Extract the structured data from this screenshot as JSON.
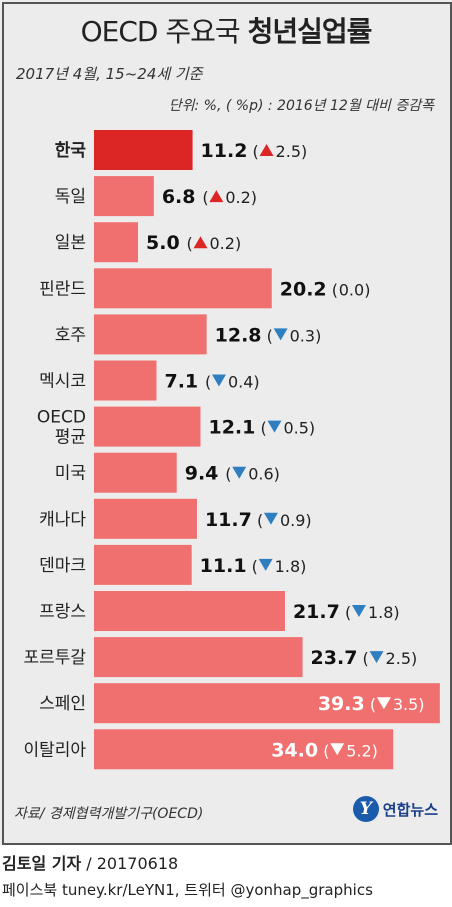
{
  "title_light": "OECD 주요국 ",
  "title_bold": "청년실업률",
  "subtitle": "2017년 4월, 15~24세 기준",
  "unit_note": "단위: %, ( %p) : 2016년 12월 대비 증감폭",
  "source": "자료/ 경제협력개발기구(OECD)",
  "logo_text": "연합뉴스",
  "logo_mark": "Y",
  "reporter": "김토일 기자",
  "date": " / 20170618",
  "social": "페이스북 tuney.kr/LeYN1, 트위터 @yonhap_graphics",
  "colors": {
    "bar": "#f07070",
    "highlight": "#dc2626",
    "up": "#dc2626",
    "down": "#2f7fc0",
    "panel": "#ececec"
  },
  "chart_data": {
    "type": "bar",
    "orientation": "horizontal",
    "categories": [
      "한국",
      "독일",
      "일본",
      "핀란드",
      "호주",
      "멕시코",
      "OECD 평균",
      "미국",
      "캐나다",
      "덴마크",
      "프랑스",
      "포르투갈",
      "스페인",
      "이탈리아"
    ],
    "values": [
      11.2,
      6.8,
      5.0,
      20.2,
      12.8,
      7.1,
      12.1,
      9.4,
      11.7,
      11.1,
      21.7,
      23.7,
      39.3,
      34.0
    ],
    "labels": [
      "11.2",
      "6.8",
      "5.0",
      "20.2",
      "12.8",
      "7.1",
      "12.1",
      "9.4",
      "11.7",
      "11.1",
      "21.7",
      "23.7",
      "39.3",
      "34.0"
    ],
    "change": [
      2.5,
      0.2,
      0.2,
      0.0,
      -0.3,
      -0.4,
      -0.5,
      -0.6,
      -0.9,
      -1.8,
      -1.8,
      -2.5,
      -3.5,
      -5.2
    ],
    "change_labels": [
      "2.5",
      "0.2",
      "0.2",
      "0.0",
      "0.3",
      "0.4",
      "0.5",
      "0.6",
      "0.9",
      "1.8",
      "1.8",
      "2.5",
      "3.5",
      "5.2"
    ],
    "highlight": "한국",
    "unit": "%",
    "change_unit": "%p",
    "xlim": [
      0,
      40
    ]
  }
}
